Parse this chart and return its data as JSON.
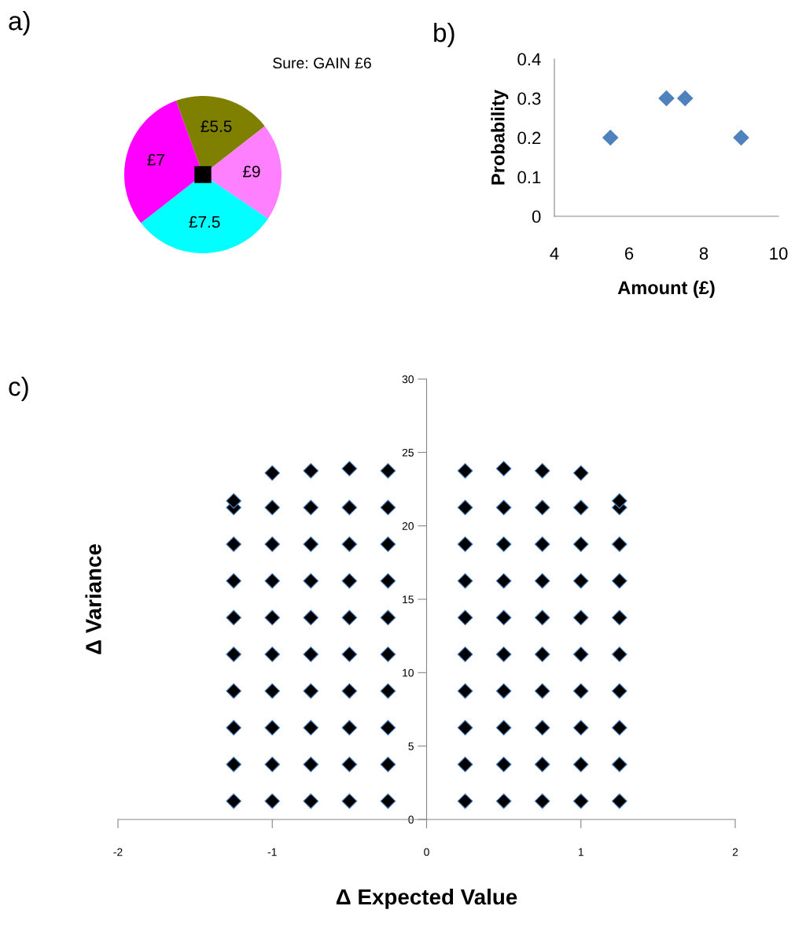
{
  "chart_data": [
    {
      "type": "pie",
      "title": "a)",
      "categories": [
        "£5.5",
        "£9",
        "£7.5",
        "£7"
      ],
      "values": [
        20,
        20,
        30,
        30
      ],
      "colors": [
        "#808000",
        "#ff80ff",
        "#00ffff",
        "#ff00ff"
      ],
      "annotations": [
        "Sure: GAIN £6"
      ]
    },
    {
      "type": "scatter",
      "title": "b)",
      "xlabel": "Amount (£)",
      "ylabel": "Probability",
      "marker": "diamond",
      "grid": false,
      "x": [
        5.5,
        7,
        7.5,
        9
      ],
      "values": [
        0.2,
        0.3,
        0.3,
        0.2
      ],
      "color": "#4f81bd",
      "xlim": [
        4,
        10
      ],
      "xticks": [
        4,
        6,
        8,
        10
      ],
      "ylim": [
        0,
        0.4
      ],
      "yticks": [
        0,
        0.1,
        0.2,
        0.3,
        0.4
      ]
    },
    {
      "type": "scatter",
      "title": "c)",
      "xlabel": "Δ Expected Value",
      "ylabel": "Δ Variance",
      "marker": "diamond",
      "grid": false,
      "xlim": [
        -2,
        2
      ],
      "xticks": [
        -2,
        -1,
        0,
        1,
        2
      ],
      "ylim": [
        0,
        30
      ],
      "yticks": [
        0,
        5,
        10,
        15,
        20,
        25,
        30
      ],
      "series": [
        {
          "color": "#000000",
          "x": [
            -1.25,
            -1.25,
            -1.25,
            -1.25,
            -1.25,
            -1.25,
            -1.25,
            -1.25,
            -1.25,
            -1.25
          ],
          "values": [
            1.25,
            3.75,
            6.25,
            8.75,
            11.25,
            13.75,
            16.25,
            18.75,
            21.25,
            21.7
          ]
        },
        {
          "color": "#000000",
          "x": [
            -1,
            -1,
            -1,
            -1,
            -1,
            -1,
            -1,
            -1,
            -1,
            -1
          ],
          "values": [
            1.25,
            3.75,
            6.25,
            8.75,
            11.25,
            13.75,
            16.25,
            18.75,
            21.25,
            23.6
          ]
        },
        {
          "color": "#000000",
          "x": [
            -0.75,
            -0.75,
            -0.75,
            -0.75,
            -0.75,
            -0.75,
            -0.75,
            -0.75,
            -0.75,
            -0.75
          ],
          "values": [
            1.25,
            3.75,
            6.25,
            8.75,
            11.25,
            13.75,
            16.25,
            18.75,
            21.25,
            23.75
          ]
        },
        {
          "color": "#000000",
          "x": [
            -0.5,
            -0.5,
            -0.5,
            -0.5,
            -0.5,
            -0.5,
            -0.5,
            -0.5,
            -0.5,
            -0.5
          ],
          "values": [
            1.25,
            3.75,
            6.25,
            8.75,
            11.25,
            13.75,
            16.25,
            18.75,
            21.25,
            23.9
          ]
        },
        {
          "color": "#000000",
          "x": [
            -0.25,
            -0.25,
            -0.25,
            -0.25,
            -0.25,
            -0.25,
            -0.25,
            -0.25,
            -0.25,
            -0.25
          ],
          "values": [
            1.25,
            3.75,
            6.25,
            8.75,
            11.25,
            13.75,
            16.25,
            18.75,
            21.25,
            23.75
          ]
        },
        {
          "color": "#000000",
          "x": [
            0.25,
            0.25,
            0.25,
            0.25,
            0.25,
            0.25,
            0.25,
            0.25,
            0.25,
            0.25
          ],
          "values": [
            1.25,
            3.75,
            6.25,
            8.75,
            11.25,
            13.75,
            16.25,
            18.75,
            21.25,
            23.75
          ]
        },
        {
          "color": "#000000",
          "x": [
            0.5,
            0.5,
            0.5,
            0.5,
            0.5,
            0.5,
            0.5,
            0.5,
            0.5,
            0.5
          ],
          "values": [
            1.25,
            3.75,
            6.25,
            8.75,
            11.25,
            13.75,
            16.25,
            18.75,
            21.25,
            23.9
          ]
        },
        {
          "color": "#000000",
          "x": [
            0.75,
            0.75,
            0.75,
            0.75,
            0.75,
            0.75,
            0.75,
            0.75,
            0.75,
            0.75
          ],
          "values": [
            1.25,
            3.75,
            6.25,
            8.75,
            11.25,
            13.75,
            16.25,
            18.75,
            21.25,
            23.75
          ]
        },
        {
          "color": "#000000",
          "x": [
            1,
            1,
            1,
            1,
            1,
            1,
            1,
            1,
            1,
            1
          ],
          "values": [
            1.25,
            3.75,
            6.25,
            8.75,
            11.25,
            13.75,
            16.25,
            18.75,
            21.25,
            23.6
          ]
        },
        {
          "color": "#000000",
          "x": [
            1.25,
            1.25,
            1.25,
            1.25,
            1.25,
            1.25,
            1.25,
            1.25,
            1.25,
            1.25
          ],
          "values": [
            1.25,
            3.75,
            6.25,
            8.75,
            11.25,
            13.75,
            16.25,
            18.75,
            21.25,
            21.7
          ]
        }
      ]
    }
  ]
}
